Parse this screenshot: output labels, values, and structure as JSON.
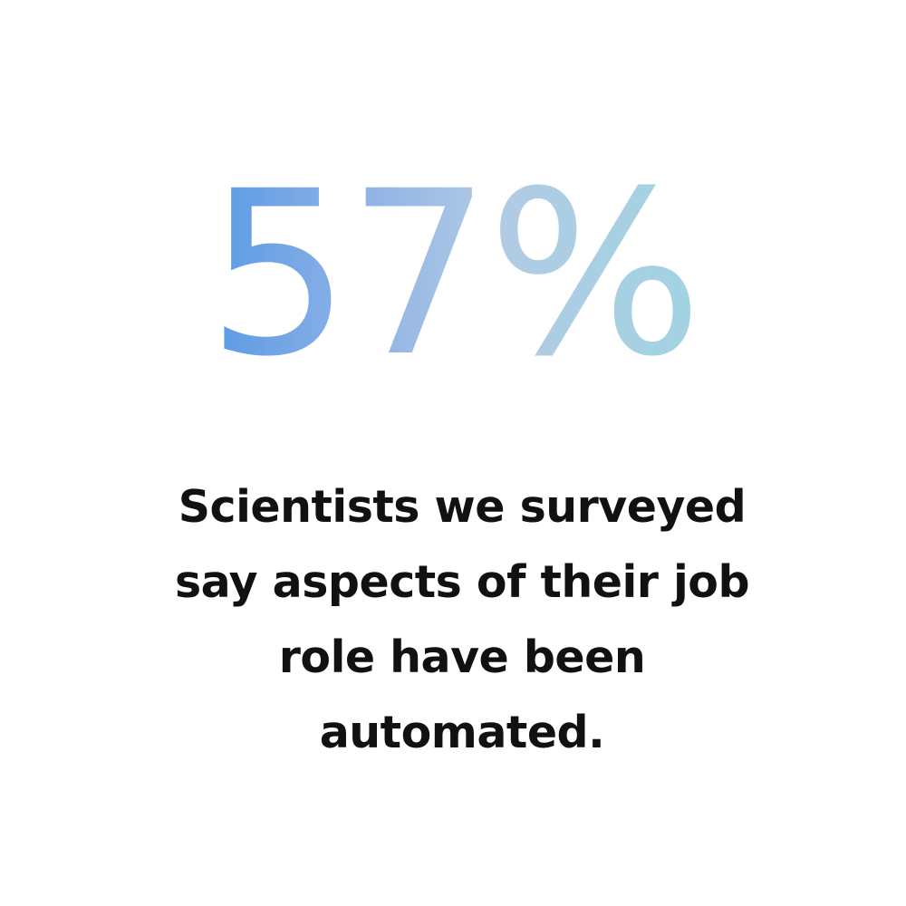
{
  "stat": {
    "value": "57%",
    "gradient": [
      "#1574e0",
      "#b1cbe4",
      "#9fdce3"
    ]
  },
  "caption": {
    "lines": [
      "Scientists we surveyed",
      "say aspects of their job",
      "role have been",
      "automated."
    ],
    "color": "#111111"
  }
}
